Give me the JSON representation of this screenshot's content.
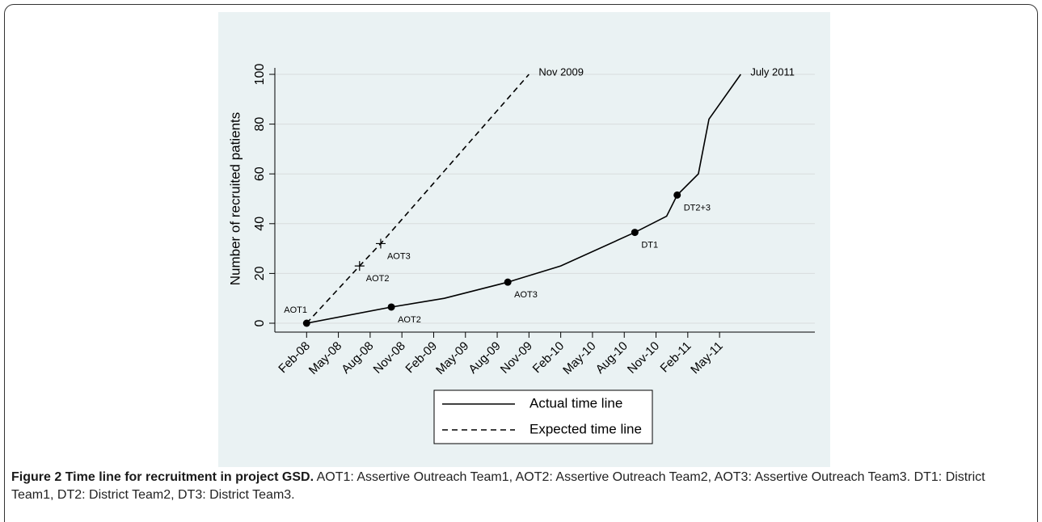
{
  "chart_data": {
    "type": "line",
    "y_label": "Number of recruited patients",
    "xlim": [
      "2007-11",
      "2012-02"
    ],
    "xticks": [
      {
        "value": "2008-02",
        "label": "Feb-08"
      },
      {
        "value": "2008-05",
        "label": "May-08"
      },
      {
        "value": "2008-08",
        "label": "Aug-08"
      },
      {
        "value": "2008-11",
        "label": "Nov-08"
      },
      {
        "value": "2009-02",
        "label": "Feb-09"
      },
      {
        "value": "2009-05",
        "label": "May-09"
      },
      {
        "value": "2009-08",
        "label": "Aug-09"
      },
      {
        "value": "2009-11",
        "label": "Nov-09"
      },
      {
        "value": "2010-02",
        "label": "Feb-10"
      },
      {
        "value": "2010-05",
        "label": "May-10"
      },
      {
        "value": "2010-08",
        "label": "Aug-10"
      },
      {
        "value": "2010-11",
        "label": "Nov-10"
      },
      {
        "value": "2011-02",
        "label": "Feb-11"
      },
      {
        "value": "2011-05",
        "label": "May-11"
      }
    ],
    "ylim": [
      0,
      100
    ],
    "yticks": [
      0,
      20,
      40,
      60,
      80,
      100
    ],
    "grid": true,
    "legend": "bottom",
    "series": [
      {
        "name": "Actual time line",
        "color": "#000000",
        "dash": "solid",
        "x": [
          "2008-02",
          "2008-10",
          "2009-03",
          "2009-09",
          "2010-02",
          "2010-09",
          "2010-12",
          "2011-01",
          "2011-03",
          "2011-04",
          "2011-07"
        ],
        "values": [
          0,
          6.5,
          10,
          16.5,
          23,
          36.5,
          43,
          51.5,
          60,
          82,
          100
        ],
        "point_labels": [
          "AOT1",
          "AOT2",
          null,
          "AOT3",
          null,
          "DT1",
          null,
          "DT2+3",
          null,
          null,
          "July 2011"
        ]
      },
      {
        "name": "Expected time line",
        "color": "#000000",
        "dash": "dashed",
        "x": [
          "2008-02",
          "2008-07",
          "2008-09",
          "2009-11"
        ],
        "values": [
          0,
          23,
          32,
          100
        ],
        "point_labels": [
          null,
          "AOT2",
          "AOT3",
          "Nov 2009"
        ]
      }
    ]
  },
  "caption": {
    "label": "Figure 2",
    "title": "Time line for recruitment in project GSD.",
    "text": "AOT1: Assertive Outreach Team1, AOT2: Assertive Outreach Team2, AOT3: Assertive Outreach Team3. DT1: District Team1, DT2: District Team2, DT3: District Team3."
  }
}
